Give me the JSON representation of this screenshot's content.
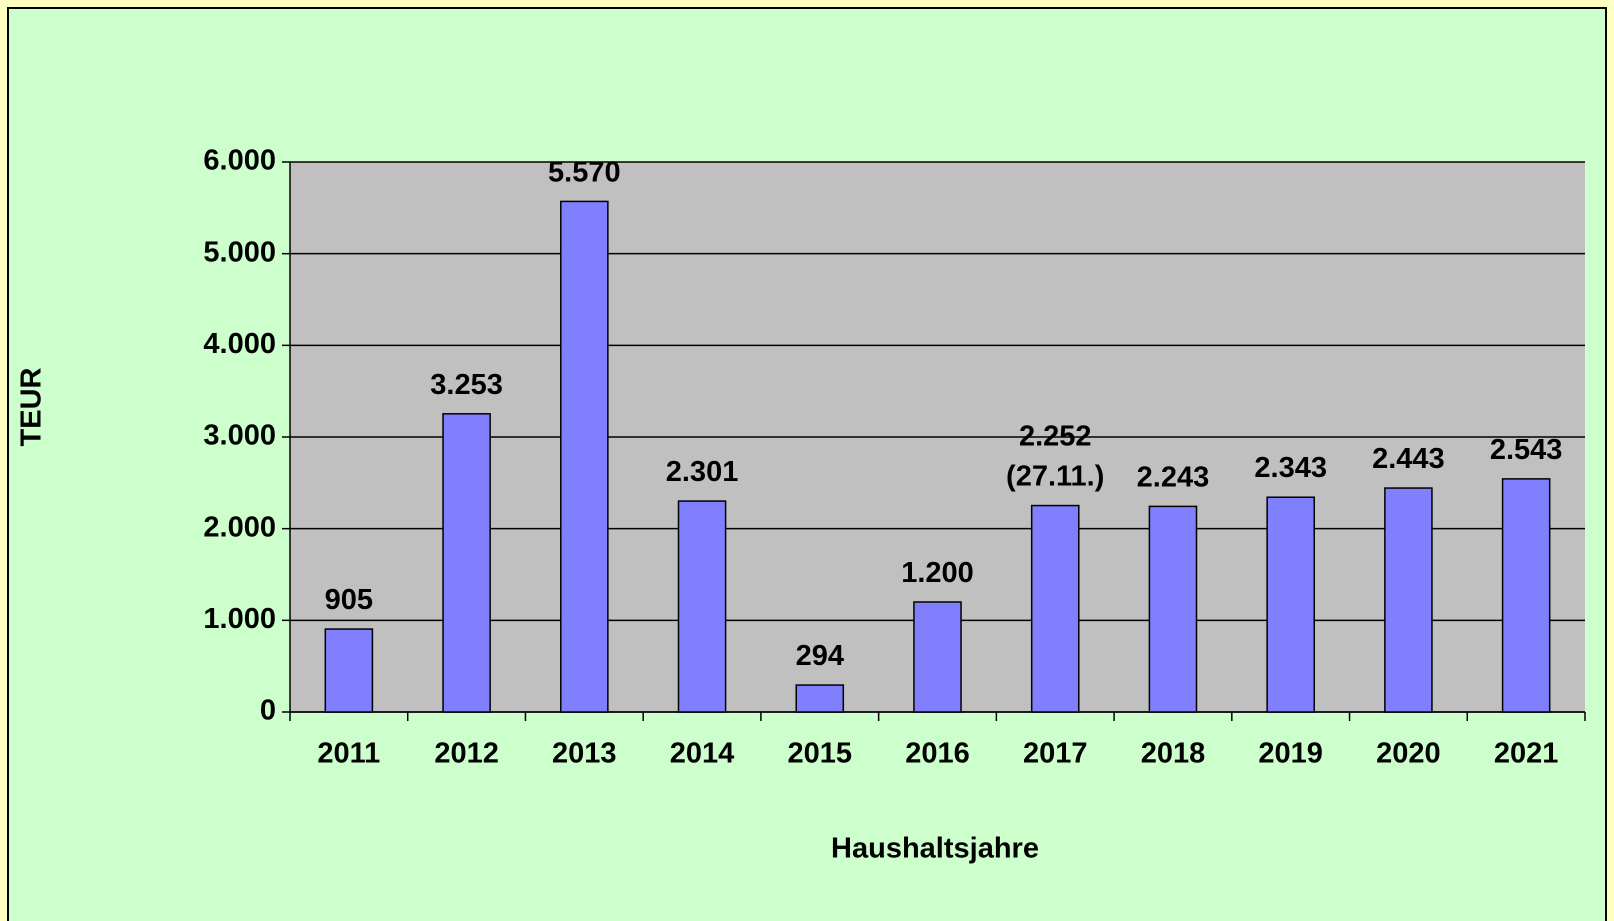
{
  "chart_data": {
    "type": "bar",
    "x_label": "Haushaltsjahre",
    "y_label": "TEUR",
    "categories": [
      "2011",
      "2012",
      "2013",
      "2014",
      "2015",
      "2016",
      "2017",
      "2018",
      "2019",
      "2020",
      "2021"
    ],
    "values": [
      905,
      3253,
      5570,
      2301,
      294,
      1200,
      2252,
      2243,
      2343,
      2443,
      2543
    ],
    "value_labels": [
      "905",
      "3.253",
      "5.570",
      "2.301",
      "294",
      "1.200",
      "2.252\n(27.11.)",
      "2.243",
      "2.343",
      "2.443",
      "2.543"
    ],
    "color": "#8080ff",
    "ylim": [
      0,
      6000
    ],
    "yticks": [
      {
        "value": 0,
        "label": "0"
      },
      {
        "value": 1000,
        "label": "1.000"
      },
      {
        "value": 2000,
        "label": "2.000"
      },
      {
        "value": 3000,
        "label": "3.000"
      },
      {
        "value": 4000,
        "label": "4.000"
      },
      {
        "value": 5000,
        "label": "5.000"
      },
      {
        "value": 6000,
        "label": "6.000"
      }
    ],
    "grid": true
  }
}
